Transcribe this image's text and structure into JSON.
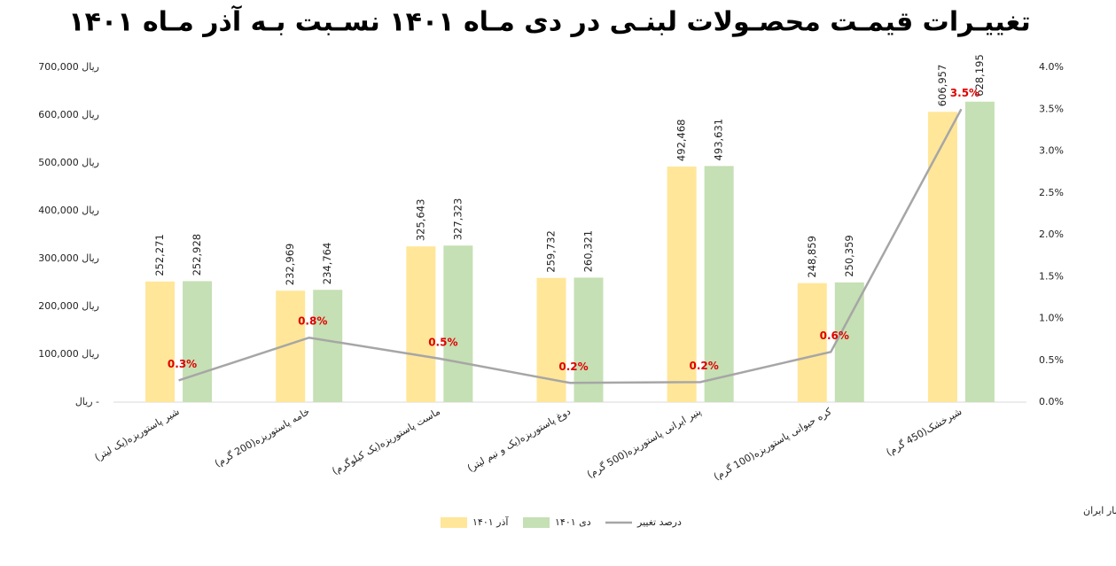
{
  "chart_data": {
    "type": "bar",
    "title": "تغییـرات قیمـت محصـولات لبنـی در دی مـاه ۱۴۰۱ نسـبت بـه آذر مـاه ۱۴۰۱",
    "source": "مرکز آمار ایران",
    "categories": [
      "شیر پاستوریزه(یک لیتر)",
      "خامه پاستوریزه(200 گرم)",
      "ماست پاستوریزه(یک کیلوگرم)",
      "دوغ پاستوریزه(یک و نیم لیتر)",
      "پنیر ایرانی پاستوریزه(500 گرم)",
      "کره حیوانی پاستوریزه(100 گرم)",
      "شیرخشک(450 گرم)"
    ],
    "series": [
      {
        "name": "آذر ۱۴۰۱",
        "color": "#ffe699",
        "values": [
          252271,
          232969,
          325643,
          259732,
          492468,
          248859,
          606957
        ],
        "value_labels": [
          "252,271",
          "232,969",
          "325,643",
          "259,732",
          "492,468",
          "248,859",
          "606,957"
        ]
      },
      {
        "name": "دی ۱۴۰۱",
        "color": "#c5e0b4",
        "values": [
          252928,
          234764,
          327323,
          260321,
          493631,
          250359,
          628195
        ],
        "value_labels": [
          "252,928",
          "234,764",
          "327,323",
          "260,321",
          "493,631",
          "250,359",
          "628,195"
        ]
      },
      {
        "name": "درصد تغییر",
        "color": "#a6a6a6",
        "type": "line",
        "axis": "y2",
        "values": [
          0.26,
          0.77,
          0.52,
          0.23,
          0.24,
          0.6,
          3.5
        ],
        "value_labels": [
          "0.3%",
          "0.8%",
          "0.5%",
          "0.2%",
          "0.2%",
          "0.6%",
          "3.5%"
        ]
      }
    ],
    "ylim": [
      0,
      700000
    ],
    "yticks": [
      {
        "value": 0,
        "label": "ریال    -"
      },
      {
        "value": 100000,
        "label": "ریال  100,000"
      },
      {
        "value": 200000,
        "label": "ریال  200,000"
      },
      {
        "value": 300000,
        "label": "ریال  300,000"
      },
      {
        "value": 400000,
        "label": "ریال  400,000"
      },
      {
        "value": 500000,
        "label": "ریال  500,000"
      },
      {
        "value": 600000,
        "label": "ریال  600,000"
      },
      {
        "value": 700000,
        "label": "ریال  700,000"
      }
    ],
    "y2lim": [
      0,
      4
    ],
    "y2ticks": [
      {
        "value": 0,
        "label": "0.0%"
      },
      {
        "value": 0.5,
        "label": "0.5%"
      },
      {
        "value": 1,
        "label": "1.0%"
      },
      {
        "value": 1.5,
        "label": "1.5%"
      },
      {
        "value": 2,
        "label": "2.0%"
      },
      {
        "value": 2.5,
        "label": "2.5%"
      },
      {
        "value": 3,
        "label": "3.0%"
      },
      {
        "value": 3.5,
        "label": "3.5%"
      },
      {
        "value": 4,
        "label": "4.0%"
      }
    ],
    "grid": false
  }
}
